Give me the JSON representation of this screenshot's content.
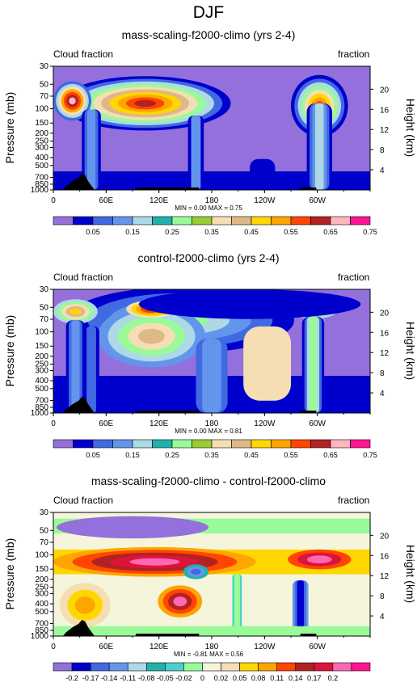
{
  "title": "DJF",
  "ylabel_left": "Pressure (mb)",
  "ylabel_right": "Height (km)",
  "left_corner": "Cloud fraction",
  "right_corner": "fraction",
  "x_ticks": [
    "0",
    "60E",
    "120E",
    "180",
    "120W",
    "60W"
  ],
  "pressure_ticks": [
    "30",
    "50",
    "70",
    "100",
    "150",
    "200",
    "250",
    "300",
    "400",
    "500",
    "700",
    "850",
    "1000"
  ],
  "height_ticks": [
    "20",
    "16",
    "12",
    "8",
    "4"
  ],
  "chart_data": [
    {
      "type": "contour",
      "title": "mass-scaling-f2000-climo (yrs 2-4)",
      "stats": "MIN =   0.00  MAX =   0.75",
      "colorbar_labels": [
        "0.05",
        "0.15",
        "0.25",
        "0.35",
        "0.45",
        "0.55",
        "0.65",
        "0.75"
      ],
      "colors": [
        "#9370db",
        "#0000cd",
        "#4169e1",
        "#6495ed",
        "#add8e6",
        "#20b2aa",
        "#98fb98",
        "#9acd32",
        "#f5deb3",
        "#deb887",
        "#ffd700",
        "#ffa500",
        "#ff4500",
        "#b22222",
        "#ffb6c1",
        "#ff1493"
      ]
    },
    {
      "type": "contour",
      "title": "control-f2000-climo (yrs 2-4)",
      "stats": "MIN =   0.00  MAX =   0.81",
      "colorbar_labels": [
        "0.05",
        "0.15",
        "0.25",
        "0.35",
        "0.45",
        "0.55",
        "0.65",
        "0.75"
      ],
      "colors": [
        "#9370db",
        "#0000cd",
        "#4169e1",
        "#6495ed",
        "#add8e6",
        "#20b2aa",
        "#98fb98",
        "#9acd32",
        "#f5deb3",
        "#deb887",
        "#ffd700",
        "#ffa500",
        "#ff4500",
        "#b22222",
        "#ffb6c1",
        "#ff1493"
      ]
    },
    {
      "type": "contour",
      "title": "mass-scaling-f2000-climo - control-f2000-climo",
      "stats": "MIN =  -0.81  MAX =   0.56",
      "colorbar_labels": [
        "-0.2",
        "-0.17",
        "-0.14",
        "-0.11",
        "-0.08",
        "-0.05",
        "-0.02",
        "0",
        "0.02",
        "0.05",
        "0.08",
        "0.11",
        "0.14",
        "0.17",
        "0.2"
      ],
      "colors": [
        "#9370db",
        "#0000cd",
        "#4169e1",
        "#6495ed",
        "#add8e6",
        "#20b2aa",
        "#48d1cc",
        "#98fb98",
        "#f5f5dc",
        "#f5deb3",
        "#ffd700",
        "#ffa500",
        "#ff4500",
        "#b22222",
        "#dc143c",
        "#ff69b4",
        "#ff1493"
      ]
    }
  ]
}
